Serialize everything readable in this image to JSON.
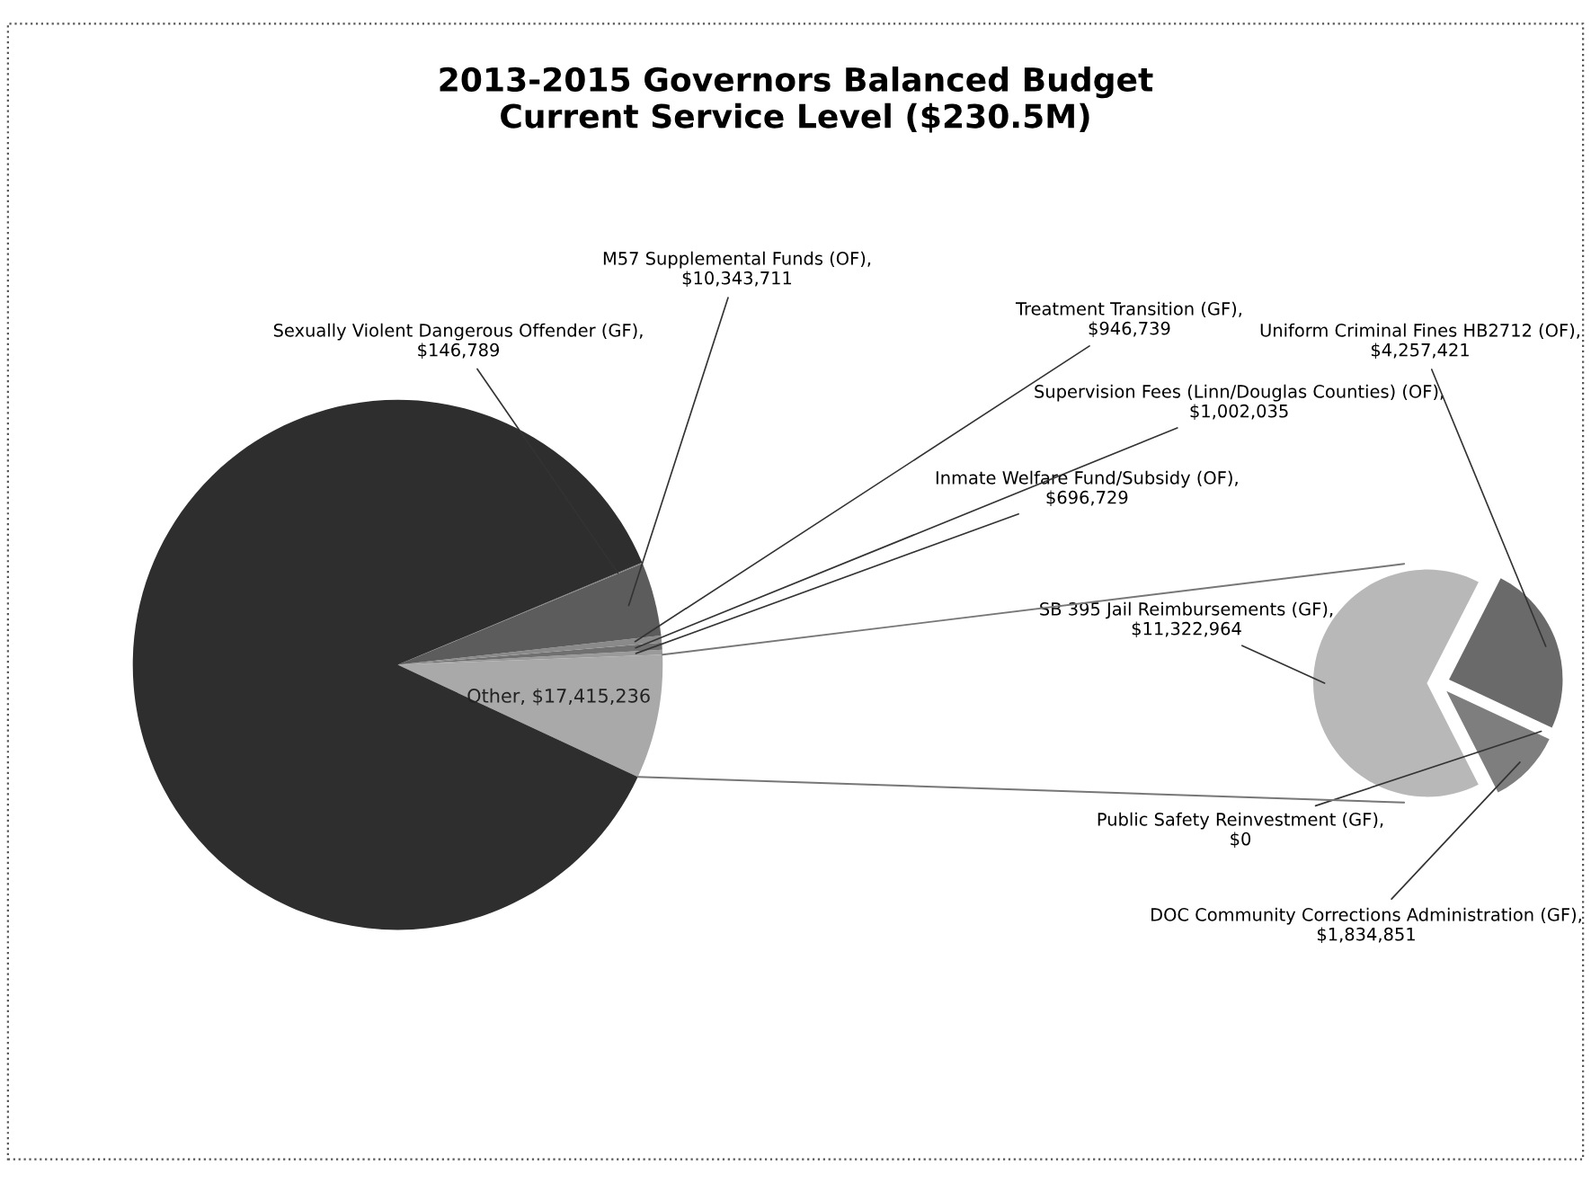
{
  "chart_data": [
    {
      "type": "pie",
      "title": "2013-2015 Governors Balanced Budget\nCurrent Service Level ($230.5M)",
      "categories": [
        "Other, $17,415,236",
        "Inmate Welfare Fund/Subsidy (OF), $696,729",
        "Supervision Fees (Linn/Douglas Counties) (OF), $1,002,035",
        "Treatment Transition (GF), $946,739",
        "M57 Supplemental Funds (OF), $10,343,711",
        "Sexually Violent Dangerous Offender (GF), $146,789",
        null
      ],
      "values": [
        17415236,
        696729,
        1002035,
        946739,
        10343711,
        146789,
        199950000
      ],
      "colors": [
        "#a9a9a9",
        "#9a9a9a",
        "#707070",
        "#8a8a8a",
        "#5c5c5c",
        "#7a7a7a",
        "#2e2e2e"
      ]
    },
    {
      "type": "pie",
      "categories": [
        "SB 395 Jail Reimbursements (GF), $11,322,964",
        "Uniform Criminal Fines HB2712 (OF), $4,257,421",
        "Public Safety Reinvestment (GF), $0",
        "DOC Community Corrections Administration (GF), $1,834,851"
      ],
      "values": [
        11322964,
        4257421,
        0,
        1834851
      ],
      "colors": [
        "#b8b8b8",
        "#6a6a6a",
        "#888888",
        "#7e7e7e"
      ]
    }
  ]
}
